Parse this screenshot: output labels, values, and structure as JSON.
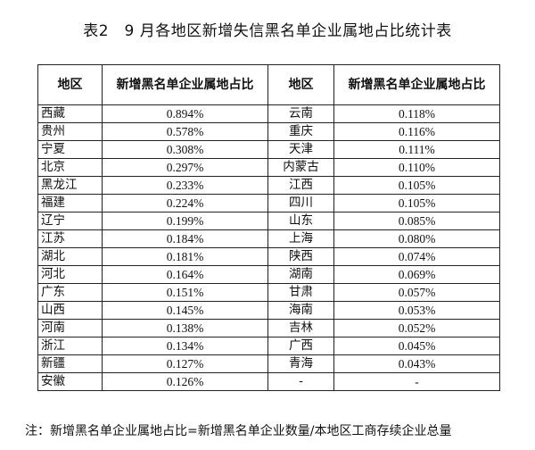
{
  "title": "表2　9 月各地区新增失信黑名单企业属地占比统计表",
  "table": {
    "headers": [
      "地区",
      "新增黑名单企业属地占比",
      "地区",
      "新增黑名单企业属地占比"
    ],
    "rows": [
      [
        "西藏",
        "0.894%",
        "云南",
        "0.118%"
      ],
      [
        "贵州",
        "0.578%",
        "重庆",
        "0.116%"
      ],
      [
        "宁夏",
        "0.308%",
        "天津",
        "0.111%"
      ],
      [
        "北京",
        "0.297%",
        "内蒙古",
        "0.110%"
      ],
      [
        "黑龙江",
        "0.233%",
        "江西",
        "0.105%"
      ],
      [
        "福建",
        "0.224%",
        "四川",
        "0.105%"
      ],
      [
        "辽宁",
        "0.199%",
        "山东",
        "0.085%"
      ],
      [
        "江苏",
        "0.184%",
        "上海",
        "0.080%"
      ],
      [
        "湖北",
        "0.181%",
        "陕西",
        "0.074%"
      ],
      [
        "河北",
        "0.164%",
        "湖南",
        "0.069%"
      ],
      [
        "广东",
        "0.151%",
        "甘肃",
        "0.057%"
      ],
      [
        "山西",
        "0.145%",
        "海南",
        "0.053%"
      ],
      [
        "河南",
        "0.138%",
        "吉林",
        "0.052%"
      ],
      [
        "浙江",
        "0.134%",
        "广西",
        "0.045%"
      ],
      [
        "新疆",
        "0.127%",
        "青海",
        "0.043%"
      ],
      [
        "安徽",
        "0.126%",
        "-",
        "-"
      ]
    ]
  },
  "note": "注：新增黑名单企业属地占比=新增黑名单企业数量/本地区工商存续企业总量"
}
